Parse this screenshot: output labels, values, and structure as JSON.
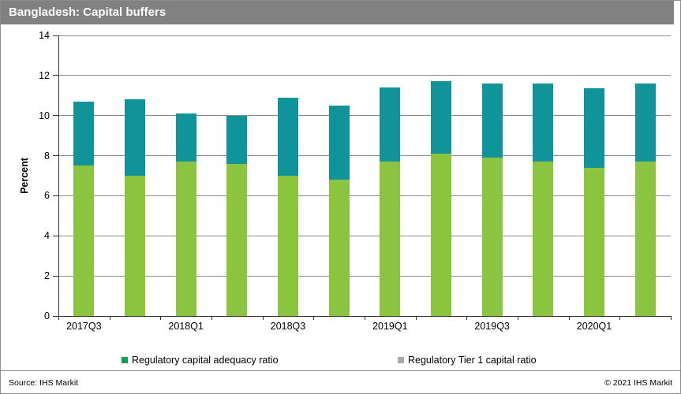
{
  "title_bar": {
    "title": "Bangladesh: Capital buffers",
    "background_color": "#818181",
    "text_color": "#ffffff"
  },
  "chart_data": {
    "type": "bar",
    "stacked": true,
    "title": "Bangladesh: Capital buffers",
    "xlabel": "",
    "ylabel": "Percent",
    "ylim": [
      0,
      14
    ],
    "yticks": [
      0,
      2,
      4,
      6,
      8,
      10,
      12,
      14
    ],
    "grid": "horizontal",
    "legend_position": "bottom",
    "categories": [
      "2017Q3",
      "2017Q4",
      "2018Q1",
      "2018Q2",
      "2018Q3",
      "2018Q4",
      "2019Q1",
      "2019Q2",
      "2019Q3",
      "2019Q4",
      "2020Q1",
      "2020Q2"
    ],
    "xtick_labels_shown": [
      "2017Q3",
      "2018Q1",
      "2018Q3",
      "2019Q1",
      "2019Q3",
      "2020Q1"
    ],
    "series": [
      {
        "name": "Regulatory capital adequacy ratio",
        "bar_color": "#8bc540",
        "legend_marker_color": "#00a651",
        "values": [
          7.5,
          7.0,
          7.7,
          7.6,
          7.0,
          6.8,
          7.7,
          8.1,
          7.9,
          7.7,
          7.4,
          7.7
        ]
      },
      {
        "name": "Regulatory Tier 1 capital ratio",
        "bar_color": "#10949a",
        "legend_marker_color": "#ababab",
        "values": [
          3.2,
          3.8,
          2.4,
          2.4,
          3.9,
          3.7,
          3.7,
          3.6,
          3.7,
          3.9,
          3.95,
          3.9
        ]
      }
    ],
    "stack_totals": [
      10.7,
      10.8,
      10.1,
      10.0,
      10.9,
      10.5,
      11.4,
      11.7,
      11.6,
      11.6,
      11.35,
      11.6
    ]
  },
  "legend": {
    "items": [
      {
        "label": "Regulatory capital adequacy ratio",
        "marker_color": "#00a651"
      },
      {
        "label": "Regulatory Tier 1 capital ratio",
        "marker_color": "#ababab"
      }
    ]
  },
  "footer": {
    "source": "Source: IHS Markit",
    "copyright": "© 2021  IHS Markit"
  }
}
